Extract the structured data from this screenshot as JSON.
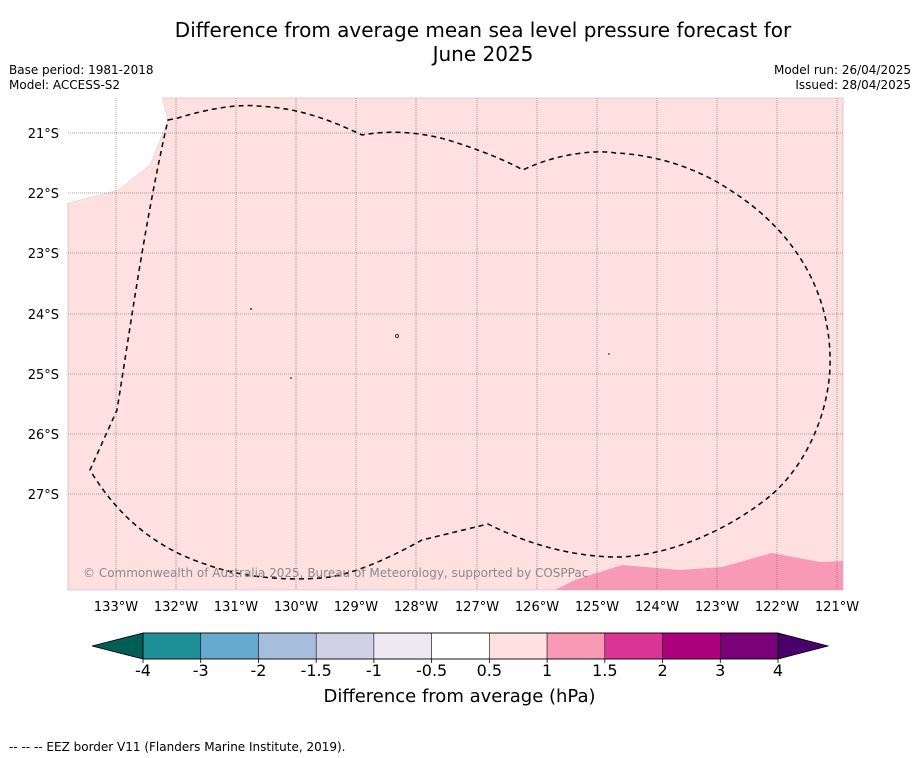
{
  "title_line1": "Difference from average mean sea level pressure forecast for",
  "title_line2": "June 2025",
  "meta": {
    "base_period": "Base period: 1981-2018",
    "model": "Model: ACCESS-S2",
    "model_run": "Model run: 26/04/2025",
    "issued": "Issued: 28/04/2025"
  },
  "map": {
    "lat_labels": [
      "21°S",
      "22°S",
      "23°S",
      "24°S",
      "25°S",
      "26°S",
      "27°S"
    ],
    "lon_labels": [
      "133°W",
      "132°W",
      "131°W",
      "130°W",
      "129°W",
      "128°W",
      "127°W",
      "126°W",
      "125°W",
      "124°W",
      "123°W",
      "122°W",
      "121°W"
    ],
    "fill_main_color": "#fde0df",
    "fill_high_color": "#f89ab5",
    "copyright": "© Commonwealth of Australia 2025, Bureau of Meteorology, supported by COSPPac"
  },
  "colorbar": {
    "colors": [
      "#005f55",
      "#1c8f97",
      "#68a9cf",
      "#a6bddb",
      "#d0d1e6",
      "#ede8f1",
      "#ffffff",
      "#fde0df",
      "#f89ab5",
      "#dd3497",
      "#ae017e",
      "#7a0177",
      "#49006a"
    ],
    "tick_labels": [
      "-4",
      "-3",
      "-2",
      "-1.5",
      "-1",
      "-0.5",
      "0.5",
      "1",
      "1.5",
      "2",
      "3",
      "4"
    ],
    "title": "Difference from average (hPa)"
  },
  "footnote": "--  --  -- EEZ border V11 (Flanders Marine Institute, 2019)."
}
